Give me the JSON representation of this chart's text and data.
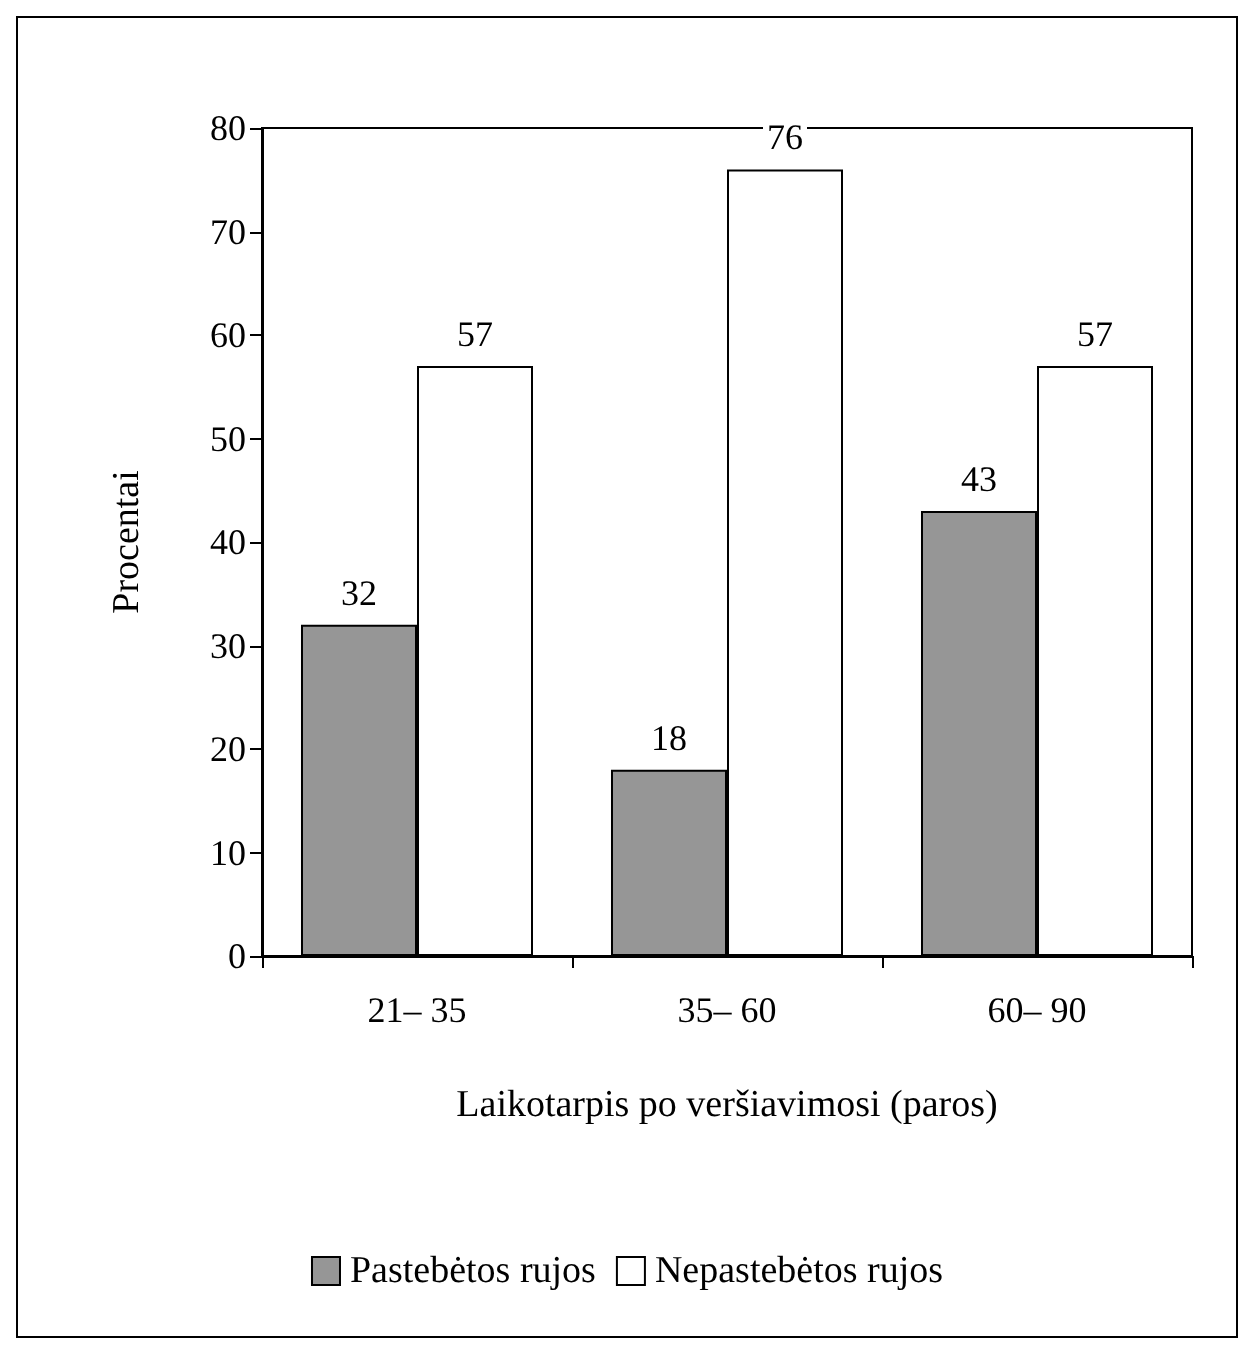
{
  "chart_data": {
    "type": "bar",
    "xlabel": "Laikotarpis po veršiavimosi (paros)",
    "ylabel": "Procentai",
    "categories": [
      "21– 35",
      "35– 60",
      "60– 90"
    ],
    "series": [
      {
        "name": "Pastebėtos rujos",
        "color": "#969696",
        "values": [
          32,
          18,
          43
        ]
      },
      {
        "name": "Nepastebėtos rujos",
        "color": "#ffffff",
        "values": [
          57,
          76,
          57
        ]
      }
    ],
    "ylim": [
      0,
      80
    ],
    "yticks": [
      0,
      10,
      20,
      30,
      40,
      50,
      60,
      70,
      80
    ],
    "grid": false,
    "legend": "bottom",
    "data_labels": true
  }
}
